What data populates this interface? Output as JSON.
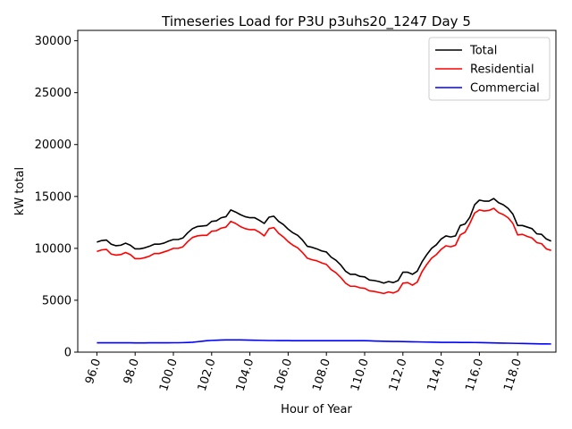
{
  "chart_data": {
    "type": "line",
    "title": "Timeseries Load for P3U p3uhs20_1247  Day 5",
    "xlabel": "Hour of Year",
    "ylabel": "kW total",
    "xlim": [
      95.0,
      120.0
    ],
    "ylim": [
      0,
      31000
    ],
    "xticks": [
      96.0,
      98.0,
      100.0,
      102.0,
      104.0,
      106.0,
      108.0,
      110.0,
      112.0,
      114.0,
      116.0,
      118.0
    ],
    "xtick_labels": [
      "96.0",
      "98.0",
      "100.0",
      "102.0",
      "104.0",
      "106.0",
      "108.0",
      "110.0",
      "112.0",
      "114.0",
      "116.0",
      "118.0"
    ],
    "yticks": [
      0,
      5000,
      10000,
      15000,
      20000,
      25000,
      30000
    ],
    "ytick_labels": [
      "0",
      "5000",
      "10000",
      "15000",
      "20000",
      "25000",
      "30000"
    ],
    "legend_position": "top-right",
    "x": [
      96.0,
      96.25,
      96.5,
      96.75,
      97.0,
      97.25,
      97.5,
      97.75,
      98.0,
      98.25,
      98.5,
      98.75,
      99.0,
      99.25,
      99.5,
      99.75,
      100.0,
      100.25,
      100.5,
      100.75,
      101.0,
      101.25,
      101.5,
      101.75,
      102.0,
      102.25,
      102.5,
      102.75,
      103.0,
      103.25,
      103.5,
      103.75,
      104.0,
      104.25,
      104.5,
      104.75,
      105.0,
      105.25,
      105.5,
      105.75,
      106.0,
      106.25,
      106.5,
      106.75,
      107.0,
      107.25,
      107.5,
      107.75,
      108.0,
      108.25,
      108.5,
      108.75,
      109.0,
      109.25,
      109.5,
      109.75,
      110.0,
      110.25,
      110.5,
      110.75,
      111.0,
      111.25,
      111.5,
      111.75,
      112.0,
      112.25,
      112.5,
      112.75,
      113.0,
      113.25,
      113.5,
      113.75,
      114.0,
      114.25,
      114.5,
      114.75,
      115.0,
      115.25,
      115.5,
      115.75,
      116.0,
      116.25,
      116.5,
      116.75,
      117.0,
      117.25,
      117.5,
      117.75,
      118.0,
      118.25,
      118.5,
      118.75,
      119.0,
      119.25,
      119.5,
      119.75
    ],
    "series": [
      {
        "name": "Total",
        "color": "#000000",
        "values": [
          10600,
          10750,
          10800,
          10400,
          10250,
          10300,
          10500,
          10300,
          9950,
          9950,
          10050,
          10200,
          10400,
          10400,
          10500,
          10700,
          10850,
          10850,
          11000,
          11500,
          11900,
          12100,
          12150,
          12200,
          12600,
          12650,
          12950,
          13050,
          13700,
          13500,
          13250,
          13050,
          12950,
          12950,
          12700,
          12400,
          13000,
          13100,
          12600,
          12300,
          11850,
          11500,
          11250,
          10800,
          10200,
          10100,
          9950,
          9750,
          9650,
          9150,
          8850,
          8400,
          7800,
          7500,
          7500,
          7300,
          7250,
          6950,
          6900,
          6800,
          6650,
          6800,
          6700,
          6900,
          7700,
          7700,
          7500,
          7800,
          8700,
          9400,
          10000,
          10350,
          10900,
          11200,
          11100,
          11200,
          12200,
          12350,
          13000,
          14200,
          14650,
          14550,
          14550,
          14800,
          14400,
          14200,
          13850,
          13300,
          12200,
          12200,
          12050,
          11900,
          11400,
          11350,
          10900,
          10700
        ]
      },
      {
        "name": "Residential",
        "color": "#ff0000",
        "values": [
          9700,
          9850,
          9900,
          9450,
          9350,
          9400,
          9600,
          9400,
          9000,
          9000,
          9100,
          9250,
          9500,
          9500,
          9650,
          9800,
          10000,
          10000,
          10150,
          10650,
          11050,
          11200,
          11250,
          11250,
          11650,
          11700,
          11950,
          12050,
          12600,
          12400,
          12100,
          11900,
          11800,
          11800,
          11550,
          11200,
          11900,
          12000,
          11450,
          11100,
          10650,
          10300,
          10050,
          9600,
          9050,
          8900,
          8800,
          8600,
          8450,
          7950,
          7650,
          7200,
          6650,
          6350,
          6350,
          6200,
          6150,
          5900,
          5850,
          5750,
          5650,
          5800,
          5700,
          5900,
          6650,
          6700,
          6450,
          6750,
          7750,
          8450,
          9050,
          9400,
          9900,
          10250,
          10150,
          10300,
          11300,
          11550,
          12400,
          13400,
          13700,
          13600,
          13650,
          13850,
          13450,
          13250,
          12950,
          12400,
          11300,
          11350,
          11150,
          11000,
          10550,
          10450,
          9950,
          9800
        ]
      },
      {
        "name": "Commercial",
        "color": "#0000ff",
        "values": [
          900,
          900,
          900,
          895,
          895,
          895,
          895,
          895,
          890,
          890,
          890,
          895,
          895,
          895,
          900,
          900,
          905,
          905,
          915,
          930,
          950,
          1000,
          1050,
          1100,
          1130,
          1150,
          1170,
          1180,
          1180,
          1180,
          1175,
          1170,
          1160,
          1150,
          1140,
          1130,
          1120,
          1120,
          1115,
          1110,
          1110,
          1105,
          1105,
          1105,
          1105,
          1105,
          1105,
          1105,
          1105,
          1105,
          1105,
          1105,
          1105,
          1105,
          1105,
          1105,
          1100,
          1090,
          1075,
          1060,
          1050,
          1040,
          1030,
          1025,
          1020,
          1010,
          1000,
          990,
          980,
          970,
          960,
          950,
          945,
          945,
          940,
          940,
          935,
          930,
          930,
          925,
          920,
          910,
          900,
          890,
          880,
          870,
          860,
          850,
          840,
          830,
          820,
          810,
          800,
          795,
          790,
          785
        ]
      }
    ]
  }
}
